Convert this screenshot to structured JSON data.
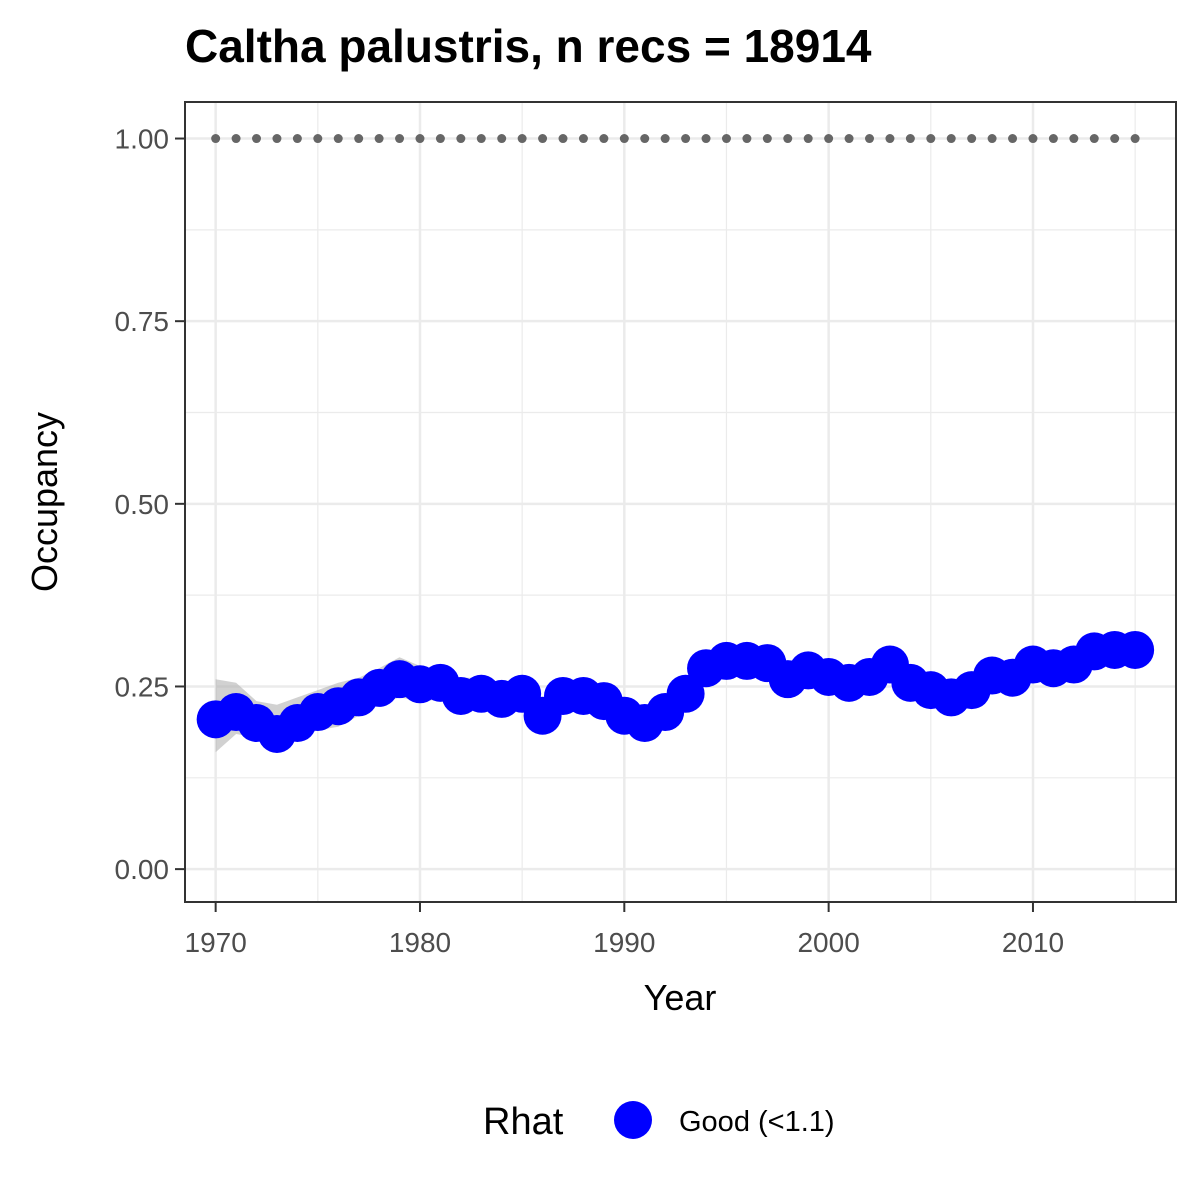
{
  "chart_data": {
    "type": "line",
    "title": "Caltha palustris, n recs = 18914",
    "xlabel": "Year",
    "ylabel": "Occupancy",
    "xlim": [
      1968.5,
      2017
    ],
    "ylim": [
      -0.045,
      1.05
    ],
    "x_ticks": [
      1970,
      1980,
      1990,
      2000,
      2010
    ],
    "x_tick_labels": [
      "1970",
      "1980",
      "1990",
      "2000",
      "2010"
    ],
    "y_ticks": [
      0,
      0.25,
      0.5,
      0.75,
      1.0
    ],
    "y_tick_labels": [
      "0.00",
      "0.25",
      "0.50",
      "0.75",
      "1.00"
    ],
    "grid": true,
    "legend": {
      "title": "Rhat",
      "position": "bottom",
      "entries": [
        {
          "label": "Good (<1.1)",
          "color": "#0000ff"
        }
      ]
    },
    "colors": {
      "series": "#0000ff",
      "ribbon": "#b3b3b3",
      "reference": "#666666",
      "grid": "#ebebeb",
      "panel_border": "#333333"
    },
    "x": [
      1970,
      1971,
      1972,
      1973,
      1974,
      1975,
      1976,
      1977,
      1978,
      1979,
      1980,
      1981,
      1982,
      1983,
      1984,
      1985,
      1986,
      1987,
      1988,
      1989,
      1990,
      1991,
      1992,
      1993,
      1994,
      1995,
      1996,
      1997,
      1998,
      1999,
      2000,
      2001,
      2002,
      2003,
      2004,
      2005,
      2006,
      2007,
      2008,
      2009,
      2010,
      2011,
      2012,
      2013,
      2014,
      2015
    ],
    "series": [
      {
        "name": "Good (<1.1)",
        "values": [
          0.205,
          0.215,
          0.2,
          0.185,
          0.2,
          0.215,
          0.223,
          0.235,
          0.248,
          0.26,
          0.253,
          0.255,
          0.237,
          0.24,
          0.233,
          0.24,
          0.21,
          0.237,
          0.237,
          0.23,
          0.21,
          0.2,
          0.215,
          0.24,
          0.275,
          0.285,
          0.285,
          0.282,
          0.26,
          0.272,
          0.263,
          0.255,
          0.263,
          0.28,
          0.255,
          0.245,
          0.235,
          0.245,
          0.265,
          0.262,
          0.28,
          0.275,
          0.28,
          0.298,
          0.3,
          0.3
        ],
        "lower": [
          0.16,
          0.185,
          0.18,
          0.165,
          0.18,
          0.19,
          0.195,
          0.21,
          0.225,
          0.235,
          0.23,
          0.232,
          0.215,
          0.22,
          0.215,
          0.22,
          0.195,
          0.218,
          0.22,
          0.212,
          0.19,
          0.182,
          0.197,
          0.222,
          0.258,
          0.268,
          0.268,
          0.266,
          0.245,
          0.256,
          0.248,
          0.24,
          0.248,
          0.264,
          0.24,
          0.23,
          0.22,
          0.23,
          0.25,
          0.247,
          0.264,
          0.26,
          0.264,
          0.282,
          0.284,
          0.284
        ],
        "upper": [
          0.26,
          0.255,
          0.23,
          0.225,
          0.235,
          0.245,
          0.255,
          0.262,
          0.275,
          0.29,
          0.278,
          0.272,
          0.262,
          0.262,
          0.255,
          0.26,
          0.228,
          0.255,
          0.255,
          0.25,
          0.23,
          0.22,
          0.233,
          0.258,
          0.292,
          0.302,
          0.302,
          0.298,
          0.275,
          0.288,
          0.278,
          0.27,
          0.278,
          0.296,
          0.27,
          0.26,
          0.25,
          0.26,
          0.28,
          0.277,
          0.296,
          0.29,
          0.296,
          0.314,
          0.316,
          0.316
        ]
      }
    ],
    "reference_line": {
      "x": [
        1970,
        1971,
        1972,
        1973,
        1974,
        1975,
        1976,
        1977,
        1978,
        1979,
        1980,
        1981,
        1982,
        1983,
        1984,
        1985,
        1986,
        1987,
        1988,
        1989,
        1990,
        1991,
        1992,
        1993,
        1994,
        1995,
        1996,
        1997,
        1998,
        1999,
        2000,
        2001,
        2002,
        2003,
        2004,
        2005,
        2006,
        2007,
        2008,
        2009,
        2010,
        2011,
        2012,
        2013,
        2014,
        2015
      ],
      "value": 1.0
    }
  }
}
